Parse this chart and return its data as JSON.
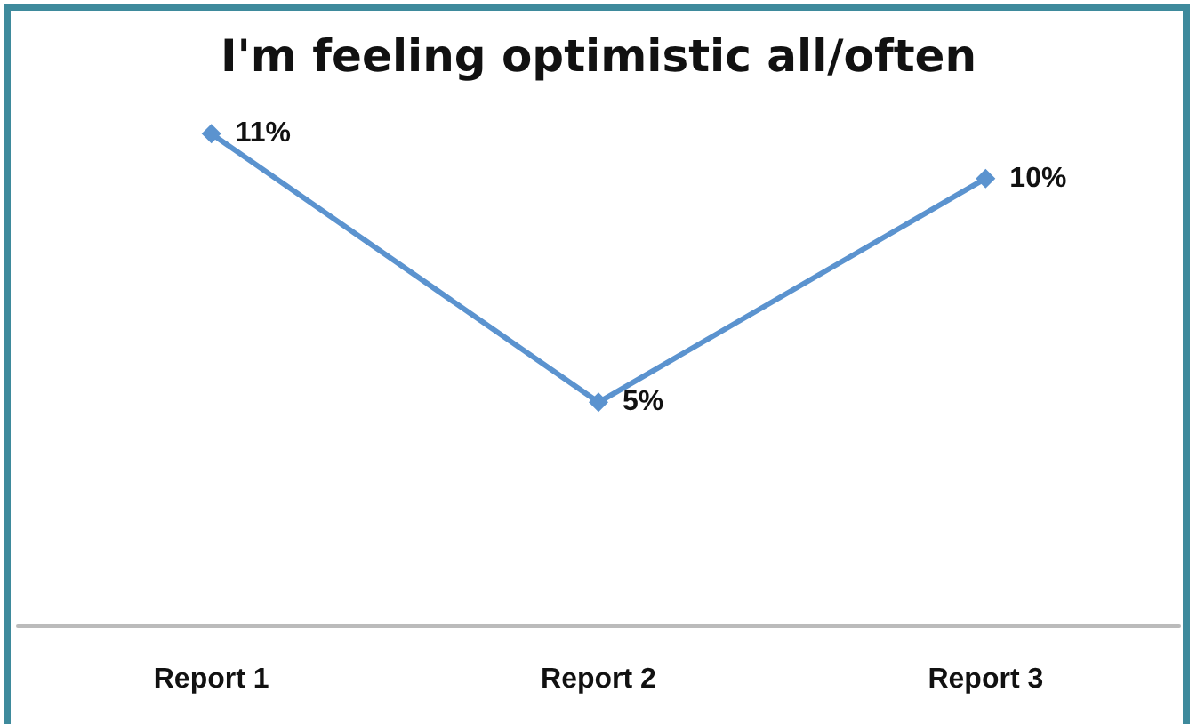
{
  "chart_data": {
    "type": "line",
    "title": "I'm feeling optimistic all/often",
    "categories": [
      "Report 1",
      "Report 2",
      "Report 3"
    ],
    "series": [
      {
        "color": "#5b93cf",
        "values": [
          11,
          5,
          10
        ],
        "value_labels": [
          "11%",
          "5%",
          "10%"
        ]
      }
    ],
    "tick_labels": "x",
    "grid": false,
    "marker": "diamond",
    "line_style": "solid"
  }
}
